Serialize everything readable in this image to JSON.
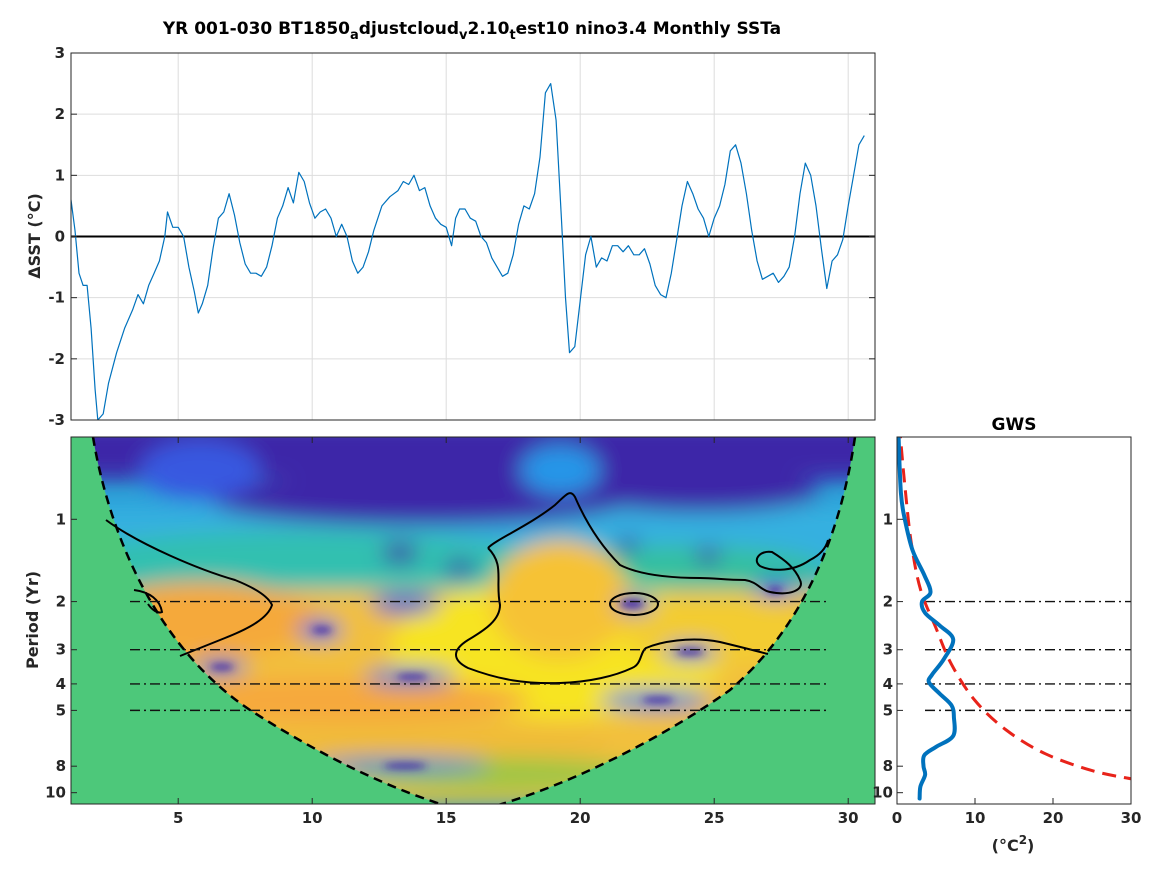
{
  "title": {
    "p1": "YR 001-030 BT1850",
    "s1": "a",
    "p2": "djustcloud",
    "s2": "v",
    "p3": "2.10",
    "s3": "t",
    "p4": "est10 nino3.4 Monthly SSTa"
  },
  "chart_data": [
    {
      "type": "line",
      "ylabel": "ΔSST (°C)",
      "ylim": [
        -3,
        3
      ],
      "xlim": [
        1,
        31
      ],
      "y_ticks": [
        "3",
        "2",
        "1",
        "0",
        "-1",
        "-2",
        "-3"
      ],
      "grid": true,
      "series": [
        {
          "color": "#0072BD",
          "points": [
            [
              1.0,
              0.6
            ],
            [
              1.15,
              0.1
            ],
            [
              1.3,
              -0.6
            ],
            [
              1.45,
              -0.8
            ],
            [
              1.6,
              -0.8
            ],
            [
              1.75,
              -1.5
            ],
            [
              1.9,
              -2.5
            ],
            [
              2.0,
              -3.0
            ],
            [
              2.2,
              -2.9
            ],
            [
              2.4,
              -2.4
            ],
            [
              2.7,
              -1.9
            ],
            [
              3.0,
              -1.5
            ],
            [
              3.3,
              -1.2
            ],
            [
              3.5,
              -0.95
            ],
            [
              3.7,
              -1.1
            ],
            [
              3.9,
              -0.8
            ],
            [
              4.1,
              -0.6
            ],
            [
              4.3,
              -0.4
            ],
            [
              4.5,
              0.0
            ],
            [
              4.6,
              0.4
            ],
            [
              4.8,
              0.15
            ],
            [
              5.0,
              0.15
            ],
            [
              5.2,
              0.0
            ],
            [
              5.4,
              -0.5
            ],
            [
              5.6,
              -0.9
            ],
            [
              5.75,
              -1.25
            ],
            [
              5.9,
              -1.1
            ],
            [
              6.1,
              -0.8
            ],
            [
              6.3,
              -0.2
            ],
            [
              6.5,
              0.3
            ],
            [
              6.7,
              0.4
            ],
            [
              6.9,
              0.7
            ],
            [
              7.1,
              0.35
            ],
            [
              7.3,
              -0.1
            ],
            [
              7.5,
              -0.45
            ],
            [
              7.7,
              -0.6
            ],
            [
              7.9,
              -0.6
            ],
            [
              8.1,
              -0.65
            ],
            [
              8.3,
              -0.5
            ],
            [
              8.5,
              -0.15
            ],
            [
              8.7,
              0.3
            ],
            [
              8.9,
              0.5
            ],
            [
              9.1,
              0.8
            ],
            [
              9.3,
              0.55
            ],
            [
              9.5,
              1.05
            ],
            [
              9.7,
              0.9
            ],
            [
              9.9,
              0.55
            ],
            [
              10.1,
              0.3
            ],
            [
              10.3,
              0.4
            ],
            [
              10.5,
              0.45
            ],
            [
              10.7,
              0.3
            ],
            [
              10.9,
              0.0
            ],
            [
              11.1,
              0.2
            ],
            [
              11.3,
              0.0
            ],
            [
              11.5,
              -0.4
            ],
            [
              11.7,
              -0.6
            ],
            [
              11.9,
              -0.5
            ],
            [
              12.1,
              -0.25
            ],
            [
              12.3,
              0.1
            ],
            [
              12.6,
              0.5
            ],
            [
              12.9,
              0.65
            ],
            [
              13.2,
              0.75
            ],
            [
              13.4,
              0.9
            ],
            [
              13.6,
              0.85
            ],
            [
              13.8,
              1.0
            ],
            [
              14.0,
              0.75
            ],
            [
              14.2,
              0.8
            ],
            [
              14.4,
              0.5
            ],
            [
              14.6,
              0.3
            ],
            [
              14.8,
              0.2
            ],
            [
              15.0,
              0.15
            ],
            [
              15.2,
              -0.15
            ],
            [
              15.35,
              0.3
            ],
            [
              15.5,
              0.45
            ],
            [
              15.7,
              0.45
            ],
            [
              15.9,
              0.3
            ],
            [
              16.1,
              0.25
            ],
            [
              16.3,
              0.0
            ],
            [
              16.5,
              -0.1
            ],
            [
              16.7,
              -0.35
            ],
            [
              16.9,
              -0.5
            ],
            [
              17.1,
              -0.65
            ],
            [
              17.3,
              -0.6
            ],
            [
              17.5,
              -0.3
            ],
            [
              17.7,
              0.2
            ],
            [
              17.9,
              0.5
            ],
            [
              18.1,
              0.45
            ],
            [
              18.3,
              0.7
            ],
            [
              18.5,
              1.3
            ],
            [
              18.7,
              2.35
            ],
            [
              18.9,
              2.5
            ],
            [
              19.1,
              1.9
            ],
            [
              19.3,
              0.3
            ],
            [
              19.45,
              -1.0
            ],
            [
              19.6,
              -1.9
            ],
            [
              19.8,
              -1.8
            ],
            [
              20.0,
              -1.05
            ],
            [
              20.2,
              -0.3
            ],
            [
              20.4,
              0.0
            ],
            [
              20.6,
              -0.5
            ],
            [
              20.8,
              -0.35
            ],
            [
              21.0,
              -0.4
            ],
            [
              21.2,
              -0.15
            ],
            [
              21.4,
              -0.15
            ],
            [
              21.6,
              -0.25
            ],
            [
              21.8,
              -0.15
            ],
            [
              22.0,
              -0.3
            ],
            [
              22.2,
              -0.3
            ],
            [
              22.4,
              -0.2
            ],
            [
              22.6,
              -0.45
            ],
            [
              22.8,
              -0.8
            ],
            [
              23.0,
              -0.95
            ],
            [
              23.2,
              -1.0
            ],
            [
              23.4,
              -0.6
            ],
            [
              23.6,
              -0.05
            ],
            [
              23.8,
              0.5
            ],
            [
              24.0,
              0.9
            ],
            [
              24.2,
              0.7
            ],
            [
              24.4,
              0.45
            ],
            [
              24.6,
              0.3
            ],
            [
              24.8,
              0.0
            ],
            [
              25.0,
              0.3
            ],
            [
              25.2,
              0.5
            ],
            [
              25.4,
              0.85
            ],
            [
              25.6,
              1.4
            ],
            [
              25.8,
              1.5
            ],
            [
              26.0,
              1.2
            ],
            [
              26.2,
              0.7
            ],
            [
              26.4,
              0.1
            ],
            [
              26.6,
              -0.4
            ],
            [
              26.8,
              -0.7
            ],
            [
              27.0,
              -0.65
            ],
            [
              27.2,
              -0.6
            ],
            [
              27.4,
              -0.75
            ],
            [
              27.6,
              -0.65
            ],
            [
              27.8,
              -0.5
            ],
            [
              28.0,
              0.0
            ],
            [
              28.2,
              0.7
            ],
            [
              28.4,
              1.2
            ],
            [
              28.6,
              1.0
            ],
            [
              28.8,
              0.5
            ],
            [
              29.0,
              -0.2
            ],
            [
              29.2,
              -0.85
            ],
            [
              29.4,
              -0.4
            ],
            [
              29.6,
              -0.3
            ],
            [
              29.8,
              -0.05
            ],
            [
              30.0,
              0.5
            ],
            [
              30.2,
              1.0
            ],
            [
              30.4,
              1.5
            ],
            [
              30.6,
              1.65
            ]
          ]
        }
      ]
    },
    {
      "type": "heatmap",
      "ylabel": "Period (Yr)",
      "xlim": [
        1,
        31
      ],
      "x_ticks": [
        "5",
        "10",
        "15",
        "20",
        "25",
        "30"
      ],
      "y_ticks": [
        "1",
        "2",
        "3",
        "4",
        "5",
        "8",
        "10"
      ],
      "y_scale": "log2",
      "reference_periods": [
        2,
        3,
        4,
        5
      ],
      "colors": {
        "low": "#3E26A8",
        "mid": "#2EB7A0",
        "high": "#F9FB0E",
        "cone_fill": "#4DC87A"
      }
    },
    {
      "type": "line",
      "title": "GWS",
      "xlabel_base": "(°C",
      "xlabel_sup": "2",
      "xlabel_end": ")",
      "xlim": [
        0,
        30
      ],
      "x_ticks": [
        "0",
        "10",
        "20",
        "30"
      ],
      "y_ticks": [
        "1",
        "2",
        "3",
        "4",
        "5",
        "8",
        "10"
      ],
      "series": [
        {
          "color": "#0072BD",
          "points": [
            [
              0.2,
              0.5
            ],
            [
              0.5,
              0.8
            ],
            [
              1.0,
              1.0
            ],
            [
              2.0,
              1.3
            ],
            [
              3.5,
              1.6
            ],
            [
              4.3,
              1.85
            ],
            [
              3.2,
              2.0
            ],
            [
              3.6,
              2.2
            ],
            [
              5.5,
              2.45
            ],
            [
              7.2,
              2.75
            ],
            [
              6.0,
              3.25
            ],
            [
              4.5,
              3.7
            ],
            [
              4.1,
              3.95
            ],
            [
              5.5,
              4.35
            ],
            [
              7.0,
              4.8
            ],
            [
              7.3,
              5.3
            ],
            [
              7.2,
              6.2
            ],
            [
              5.0,
              6.8
            ],
            [
              3.5,
              7.3
            ],
            [
              3.4,
              8.0
            ],
            [
              3.6,
              8.6
            ],
            [
              3.0,
              9.5
            ],
            [
              2.9,
              10.5
            ]
          ]
        },
        {
          "color": "#E8231A",
          "style": "dashed",
          "points": [
            [
              0.3,
              0.45
            ],
            [
              1.0,
              0.75
            ],
            [
              1.8,
              1.2
            ],
            [
              3.0,
              1.8
            ],
            [
              5.0,
              2.5
            ],
            [
              7.0,
              3.4
            ],
            [
              10.0,
              4.6
            ],
            [
              14.0,
              5.9
            ],
            [
              19.0,
              7.2
            ],
            [
              25.0,
              8.3
            ],
            [
              30.0,
              8.9
            ]
          ]
        }
      ]
    }
  ]
}
